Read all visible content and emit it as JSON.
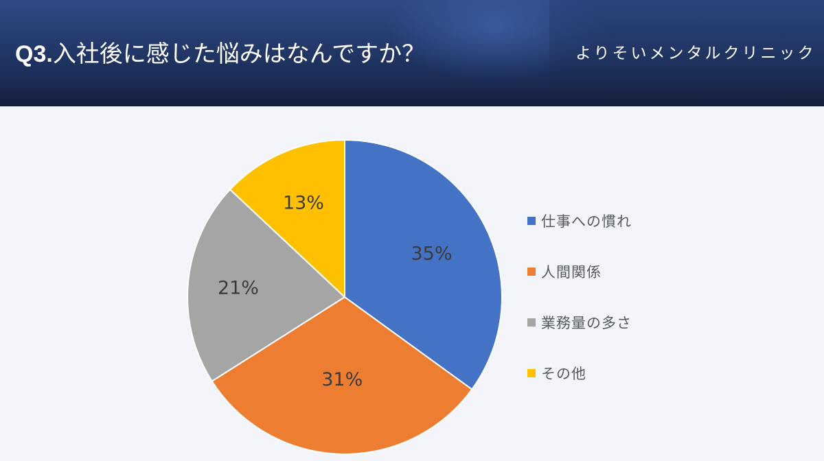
{
  "header": {
    "question_number": "Q3.",
    "question_text": "入社後に感じた悩みはなんですか？",
    "clinic_name": "よりそいメンタルクリニック"
  },
  "legend": {
    "items": [
      {
        "label": "仕事への慣れ",
        "color": "#4472c4"
      },
      {
        "label": "人間関係",
        "color": "#ed7d31"
      },
      {
        "label": "業務量の多さ",
        "color": "#a5a5a5"
      },
      {
        "label": "その他",
        "color": "#ffc000"
      }
    ]
  },
  "labels": {
    "s0": "35%",
    "s1": "31%",
    "s2": "21%",
    "s3": "13%"
  },
  "chart_data": {
    "type": "pie",
    "title": "Q3.入社後に感じた悩みはなんですか？",
    "categories": [
      "仕事への慣れ",
      "人間関係",
      "業務量の多さ",
      "その他"
    ],
    "values": [
      35,
      31,
      21,
      13
    ],
    "unit": "%",
    "colors": [
      "#4472c4",
      "#ed7d31",
      "#a5a5a5",
      "#ffc000"
    ],
    "start_angle": "12 o'clock",
    "direction": "clockwise",
    "data_labels": [
      "35%",
      "31%",
      "21%",
      "13%"
    ],
    "legend_position": "right"
  }
}
